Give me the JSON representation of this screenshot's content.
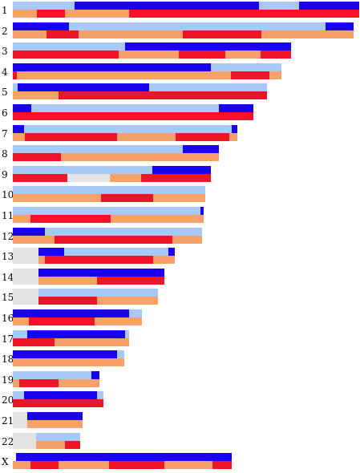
{
  "colors": {
    "light_blue": "#a8c8f5",
    "dark_blue": "#1a00f0",
    "orange": "#f6a06a",
    "red": "#f01428",
    "gray": "#e3e3e3"
  },
  "chromosomes": [
    {
      "label": "1",
      "extent": [
        16,
        448
      ],
      "top": [
        [
          "light_blue",
          16,
          93
        ],
        [
          "dark_blue",
          93,
          323
        ],
        [
          "light_blue",
          323,
          373
        ],
        [
          "dark_blue",
          373,
          448
        ]
      ],
      "bottom": [
        [
          "orange",
          16,
          46
        ],
        [
          "red",
          46,
          81
        ],
        [
          "orange",
          81,
          161
        ],
        [
          "red",
          161,
          448
        ]
      ]
    },
    {
      "label": "2",
      "extent": [
        16,
        441
      ],
      "top": [
        [
          "dark_blue",
          16,
          86
        ],
        [
          "light_blue",
          86,
          406
        ],
        [
          "dark_blue",
          406,
          441
        ]
      ],
      "bottom": [
        [
          "orange",
          16,
          58
        ],
        [
          "red",
          58,
          98
        ],
        [
          "orange",
          98,
          228
        ],
        [
          "red",
          228,
          326
        ],
        [
          "orange",
          326,
          441
        ]
      ]
    },
    {
      "label": "3",
      "extent": [
        16,
        363
      ],
      "top": [
        [
          "light_blue",
          16,
          156
        ],
        [
          "dark_blue",
          156,
          363
        ]
      ],
      "bottom": [
        [
          "red",
          16,
          148
        ],
        [
          "orange",
          148,
          223
        ],
        [
          "red",
          223,
          281
        ],
        [
          "orange",
          281,
          325
        ],
        [
          "red",
          325,
          363
        ]
      ]
    },
    {
      "label": "4",
      "extent": [
        16,
        351
      ],
      "top": [
        [
          "dark_blue",
          16,
          263
        ],
        [
          "light_blue",
          263,
          351
        ]
      ],
      "bottom": [
        [
          "red",
          16,
          21
        ],
        [
          "orange",
          21,
          288
        ],
        [
          "red",
          288,
          336
        ],
        [
          "orange",
          336,
          351
        ]
      ]
    },
    {
      "label": "5",
      "extent": [
        16,
        333
      ],
      "top": [
        [
          "light_blue",
          16,
          22
        ],
        [
          "dark_blue",
          22,
          186
        ],
        [
          "light_blue",
          186,
          333
        ]
      ],
      "bottom": [
        [
          "orange",
          16,
          73
        ],
        [
          "red",
          73,
          333
        ]
      ]
    },
    {
      "label": "6",
      "extent": [
        16,
        316
      ],
      "top": [
        [
          "dark_blue",
          16,
          39
        ],
        [
          "light_blue",
          39,
          273
        ],
        [
          "dark_blue",
          273,
          316
        ]
      ],
      "bottom": [
        [
          "red",
          16,
          316
        ]
      ]
    },
    {
      "label": "7",
      "extent": [
        16,
        296
      ],
      "top": [
        [
          "dark_blue",
          16,
          30
        ],
        [
          "light_blue",
          30,
          289
        ],
        [
          "dark_blue",
          289,
          296
        ]
      ],
      "bottom": [
        [
          "orange",
          16,
          31
        ],
        [
          "red",
          31,
          146
        ],
        [
          "orange",
          146,
          219
        ],
        [
          "red",
          219,
          286
        ],
        [
          "orange",
          286,
          296
        ]
      ]
    },
    {
      "label": "8",
      "extent": [
        16,
        273
      ],
      "top": [
        [
          "light_blue",
          16,
          228
        ],
        [
          "dark_blue",
          228,
          273
        ]
      ],
      "bottom": [
        [
          "red",
          16,
          76
        ],
        [
          "orange",
          76,
          273
        ]
      ]
    },
    {
      "label": "9",
      "extent": [
        16,
        263
      ],
      "top": [
        [
          "light_blue",
          16,
          190
        ],
        [
          "dark_blue",
          190,
          263
        ]
      ],
      "bottom": [
        [
          "red",
          16,
          84
        ],
        [
          "gray",
          84,
          137
        ],
        [
          "orange",
          137,
          176
        ],
        [
          "red",
          176,
          263
        ]
      ]
    },
    {
      "label": "10",
      "extent": [
        16,
        256
      ],
      "top": [
        [
          "light_blue",
          16,
          256
        ]
      ],
      "bottom": [
        [
          "orange",
          16,
          126
        ],
        [
          "red",
          126,
          191
        ],
        [
          "orange",
          191,
          256
        ]
      ]
    },
    {
      "label": "11",
      "extent": [
        16,
        254
      ],
      "top": [
        [
          "light_blue",
          16,
          250
        ],
        [
          "dark_blue",
          250,
          254
        ]
      ],
      "bottom": [
        [
          "orange",
          16,
          38
        ],
        [
          "red",
          38,
          138
        ],
        [
          "orange",
          138,
          254
        ]
      ]
    },
    {
      "label": "12",
      "extent": [
        16,
        252
      ],
      "top": [
        [
          "dark_blue",
          16,
          56
        ],
        [
          "light_blue",
          56,
          252
        ]
      ],
      "bottom": [
        [
          "orange",
          16,
          68
        ],
        [
          "red",
          68,
          215
        ],
        [
          "orange",
          215,
          252
        ]
      ]
    },
    {
      "label": "13",
      "extent": [
        16,
        218
      ],
      "base": [
        16,
        48
      ],
      "top": [
        [
          "dark_blue",
          48,
          80
        ],
        [
          "light_blue",
          80,
          210
        ],
        [
          "dark_blue",
          210,
          218
        ]
      ],
      "bottom": [
        [
          "orange",
          48,
          56
        ],
        [
          "red",
          56,
          191
        ],
        [
          "orange",
          191,
          218
        ]
      ]
    },
    {
      "label": "14",
      "extent": [
        16,
        205
      ],
      "base": [
        16,
        48
      ],
      "top": [
        [
          "dark_blue",
          48,
          205
        ]
      ],
      "bottom": [
        [
          "orange",
          48,
          121
        ],
        [
          "red",
          121,
          205
        ]
      ]
    },
    {
      "label": "15",
      "extent": [
        16,
        197
      ],
      "base": [
        16,
        48
      ],
      "top": [
        [
          "light_blue",
          48,
          197
        ]
      ],
      "bottom": [
        [
          "red",
          48,
          121
        ],
        [
          "orange",
          121,
          197
        ]
      ]
    },
    {
      "label": "16",
      "extent": [
        16,
        177
      ],
      "top": [
        [
          "dark_blue",
          16,
          161
        ],
        [
          "light_blue",
          161,
          177
        ]
      ],
      "bottom": [
        [
          "orange",
          16,
          36
        ],
        [
          "red",
          36,
          118
        ],
        [
          "orange",
          118,
          177
        ]
      ]
    },
    {
      "label": "17",
      "extent": [
        16,
        161
      ],
      "top": [
        [
          "light_blue",
          16,
          34
        ],
        [
          "dark_blue",
          34,
          156
        ],
        [
          "light_blue",
          156,
          161
        ]
      ],
      "bottom": [
        [
          "red",
          16,
          68
        ],
        [
          "orange",
          68,
          161
        ]
      ]
    },
    {
      "label": "18",
      "extent": [
        16,
        155
      ],
      "top": [
        [
          "dark_blue",
          16,
          146
        ],
        [
          "light_blue",
          146,
          155
        ]
      ],
      "bottom": [
        [
          "orange",
          16,
          155
        ]
      ]
    },
    {
      "label": "19",
      "extent": [
        16,
        124
      ],
      "top": [
        [
          "light_blue",
          16,
          114
        ],
        [
          "dark_blue",
          114,
          124
        ]
      ],
      "bottom": [
        [
          "orange",
          16,
          24
        ],
        [
          "red",
          24,
          73
        ],
        [
          "orange",
          73,
          124
        ]
      ]
    },
    {
      "label": "20",
      "extent": [
        16,
        129
      ],
      "top": [
        [
          "light_blue",
          16,
          30
        ],
        [
          "dark_blue",
          30,
          121
        ],
        [
          "light_blue",
          121,
          129
        ]
      ],
      "bottom": [
        [
          "red",
          16,
          129
        ]
      ]
    },
    {
      "label": "21",
      "extent": [
        16,
        103
      ],
      "base": [
        16,
        34
      ],
      "top": [
        [
          "dark_blue",
          34,
          103
        ]
      ],
      "bottom": [
        [
          "orange",
          34,
          103
        ]
      ]
    },
    {
      "label": "22",
      "extent": [
        16,
        110
      ],
      "base": [
        16,
        45
      ],
      "top": [
        [
          "light_blue",
          45,
          100
        ]
      ],
      "bottom": [
        [
          "orange",
          45,
          81
        ],
        [
          "red",
          81,
          100
        ]
      ]
    },
    {
      "label": "X",
      "extent": [
        16,
        289
      ],
      "top": [
        [
          "dark_blue",
          20,
          289
        ]
      ],
      "bottom": [
        [
          "orange",
          16,
          38
        ],
        [
          "red",
          38,
          73
        ],
        [
          "orange",
          73,
          136
        ],
        [
          "red",
          136,
          205
        ],
        [
          "orange",
          205,
          265
        ],
        [
          "red",
          265,
          289
        ]
      ]
    }
  ]
}
